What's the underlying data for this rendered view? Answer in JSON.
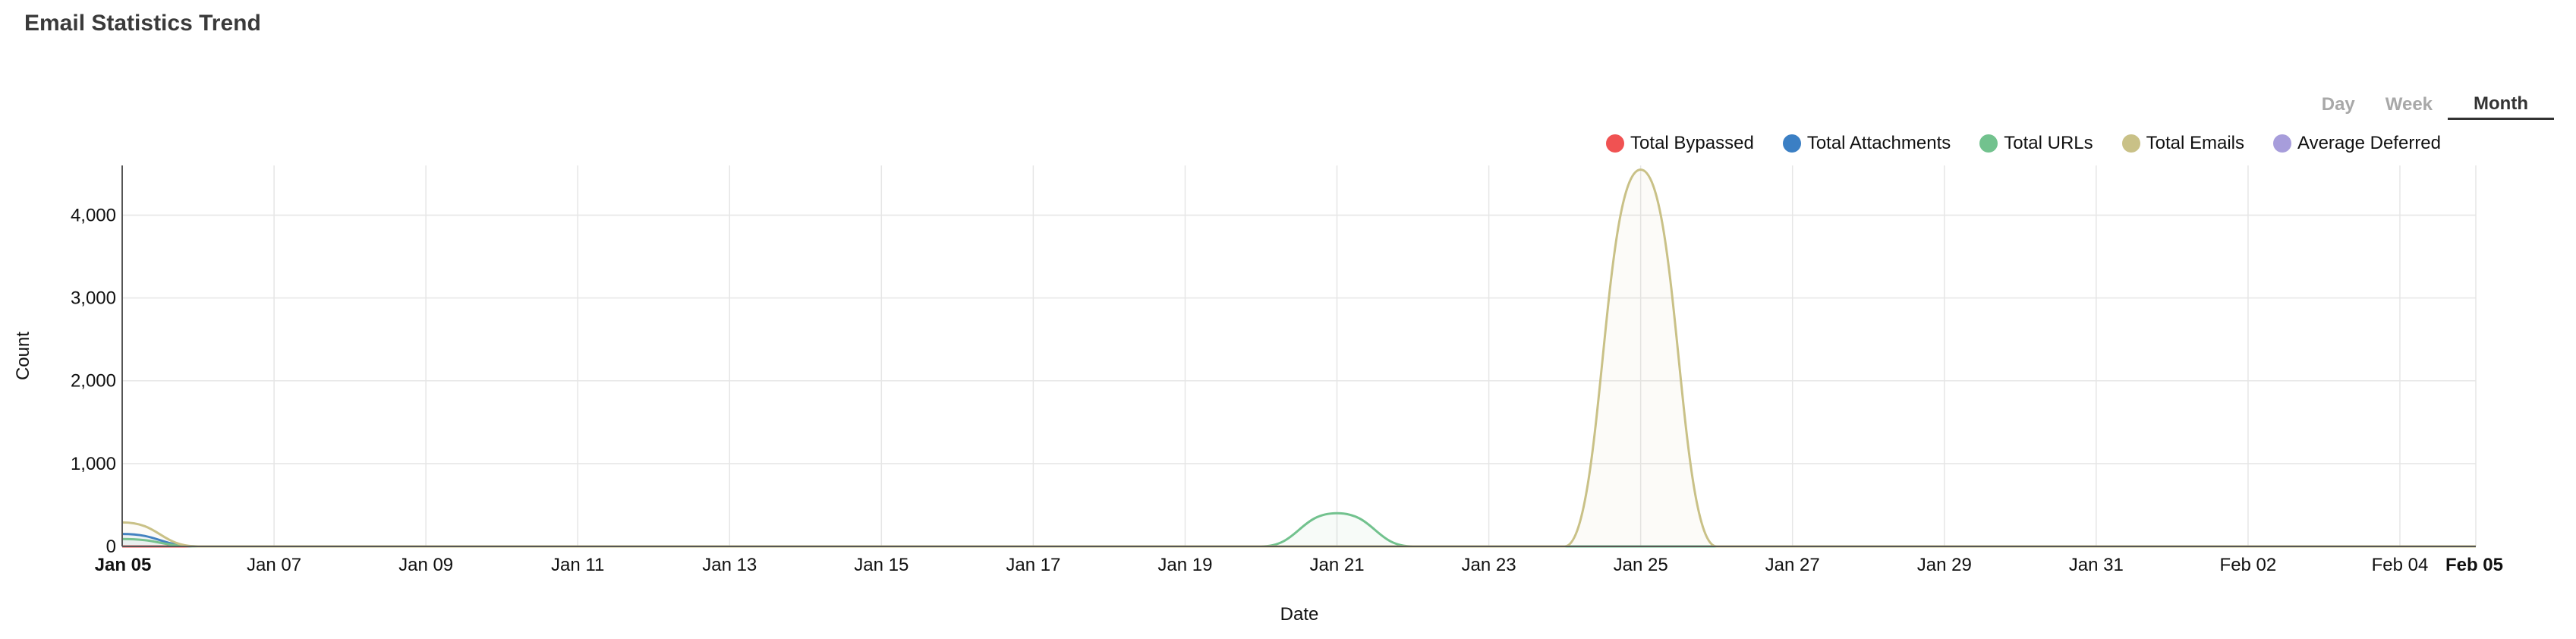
{
  "title": "Email Statistics Trend",
  "range_tabs": [
    {
      "label": "Day",
      "active": false
    },
    {
      "label": "Week",
      "active": false
    },
    {
      "label": "Month",
      "active": true
    }
  ],
  "chart_data": {
    "type": "area",
    "xlabel": "Date",
    "ylabel": "Count",
    "ylim": [
      0,
      4600
    ],
    "yticks": [
      0,
      1000,
      2000,
      3000,
      4000
    ],
    "ytick_labels": [
      "0",
      "1,000",
      "2,000",
      "3,000",
      "4,000"
    ],
    "x_range": [
      "Jan 05",
      "Feb 05"
    ],
    "x_tick_labels": [
      "Jan 05",
      "Jan 07",
      "Jan 09",
      "Jan 11",
      "Jan 13",
      "Jan 15",
      "Jan 17",
      "Jan 19",
      "Jan 21",
      "Jan 23",
      "Jan 25",
      "Jan 27",
      "Jan 29",
      "Jan 31",
      "Feb 02",
      "Feb 04",
      "Feb 05"
    ],
    "x_tick_bold": [
      "Jan 05",
      "Feb 05"
    ],
    "grid": true,
    "legend_position": "top-right",
    "series": [
      {
        "name": "Total Bypassed",
        "color": "#f05252",
        "x": [
          "Jan 05",
          "Jan 06",
          "Feb 05"
        ],
        "values": [
          0,
          0,
          0
        ]
      },
      {
        "name": "Total Attachments",
        "color": "#3b7fc4",
        "x": [
          "Jan 05",
          "Jan 06",
          "Feb 05"
        ],
        "values": [
          150,
          0,
          0
        ]
      },
      {
        "name": "Total URLs",
        "color": "#72c28e",
        "x": [
          "Jan 05",
          "Jan 06",
          "Jan 20",
          "Jan 21",
          "Jan 22",
          "Feb 05"
        ],
        "values": [
          90,
          0,
          0,
          400,
          0,
          0
        ]
      },
      {
        "name": "Total Emails",
        "color": "#c9c187",
        "x": [
          "Jan 05",
          "Jan 06",
          "Jan 24",
          "Jan 25",
          "Jan 26",
          "Feb 05"
        ],
        "values": [
          290,
          0,
          0,
          4550,
          0,
          0
        ]
      },
      {
        "name": "Average Deferred",
        "color": "#a79ddb",
        "x": [
          "Jan 05",
          "Feb 05"
        ],
        "values": [
          0,
          0
        ]
      }
    ]
  }
}
